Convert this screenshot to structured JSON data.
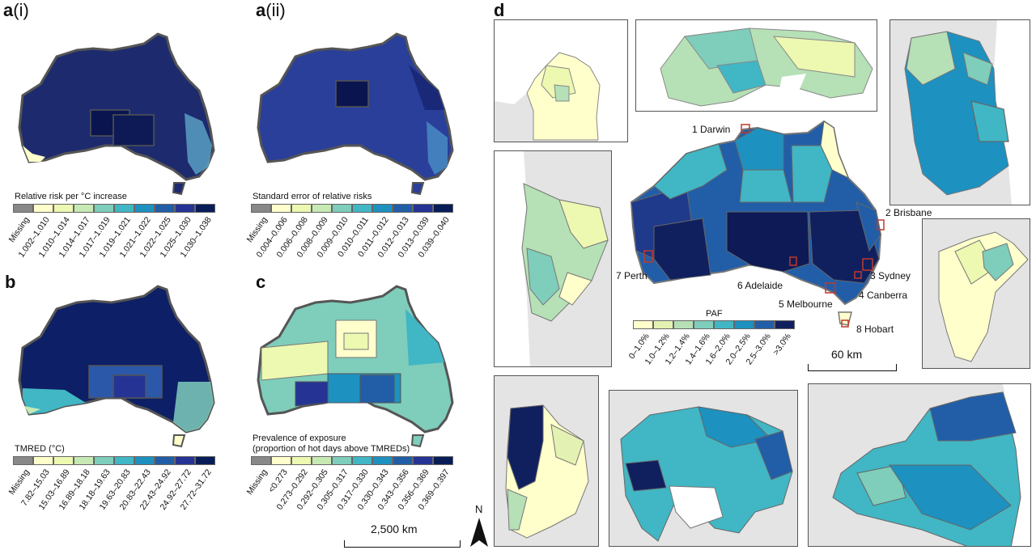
{
  "panels": {
    "a_i": {
      "label": "a",
      "sub": "(i)",
      "legend_title": "Relative risk per °C increase",
      "classes": [
        "Missing",
        "1.002–1.010",
        "1.010–1.014",
        "1.014–1.017",
        "1.017–1.019",
        "1.019–1.021",
        "1.021–1.022",
        "1.022–1.025",
        "1.025–1.030",
        "1.030–1.038"
      ]
    },
    "a_ii": {
      "label": "a",
      "sub": "(ii)",
      "legend_title": "Standard error of relative risks",
      "classes": [
        "Missing",
        "0.004–0.006",
        "0.006–0.008",
        "0.008–0.009",
        "0.009–0.010",
        "0.010–0.011",
        "0.011–0.012",
        "0.012–0.013",
        "0.013–0.039",
        "0.039–0.040"
      ]
    },
    "b": {
      "label": "b",
      "legend_title": "TMRED (°C)",
      "classes": [
        "Missing",
        "7.82–15.03",
        "15.03–16.89",
        "16.89–18.18",
        "18.18–19.63",
        "19.63–20.83",
        "20.83–22.43",
        "22.43–24.92",
        "24.92–27.72",
        "27.72–31.72"
      ]
    },
    "c": {
      "label": "c",
      "legend_title_1": "Prevalence of exposure",
      "legend_title_2": "(proportion of hot days above TMREDs)",
      "classes": [
        "Missing",
        "<0.273",
        "0.273–0.292",
        "0.292–0.305",
        "0.305–0.317",
        "0.317–0.330",
        "0.330–0.343",
        "0.343–0.356",
        "0.356–0.369",
        "0.369–0.397"
      ]
    },
    "d": {
      "label": "d",
      "legend_title": "PAF",
      "classes": [
        "0–1.0%",
        "1.0–1.2%",
        "1.2–1.4%",
        "1.4–1.6%",
        "1.6–2.0%",
        "2.0–2.5%",
        "2.5–3.0%",
        ">3.0%"
      ]
    }
  },
  "palette": {
    "missing": "#888888",
    "scale": [
      "#ffffcc",
      "#edf8b1",
      "#c7e9b4",
      "#7fcdbb",
      "#41b6c4",
      "#1d91c0",
      "#225ea8",
      "#253494",
      "#081d58"
    ],
    "paf": [
      "#ffffcc",
      "#e3f2b2",
      "#b6e0b6",
      "#7fcdbb",
      "#41b6c4",
      "#1d91c0",
      "#225ea8",
      "#10205f"
    ],
    "inset_bg": "#e4e4e4"
  },
  "cities": [
    "1 Darwin",
    "2 Brisbane",
    "3 Sydney",
    "4 Canberra",
    "5 Melbourne",
    "6 Adelaide",
    "7 Perth",
    "8 Hobart"
  ],
  "insets": [
    "1",
    "2",
    "3",
    "4",
    "5",
    "6",
    "7",
    "8"
  ],
  "scale": {
    "main": "2,500 km",
    "inset": "60 km"
  },
  "north": "N",
  "icons": {
    "north_arrow": "north-arrow-icon"
  }
}
